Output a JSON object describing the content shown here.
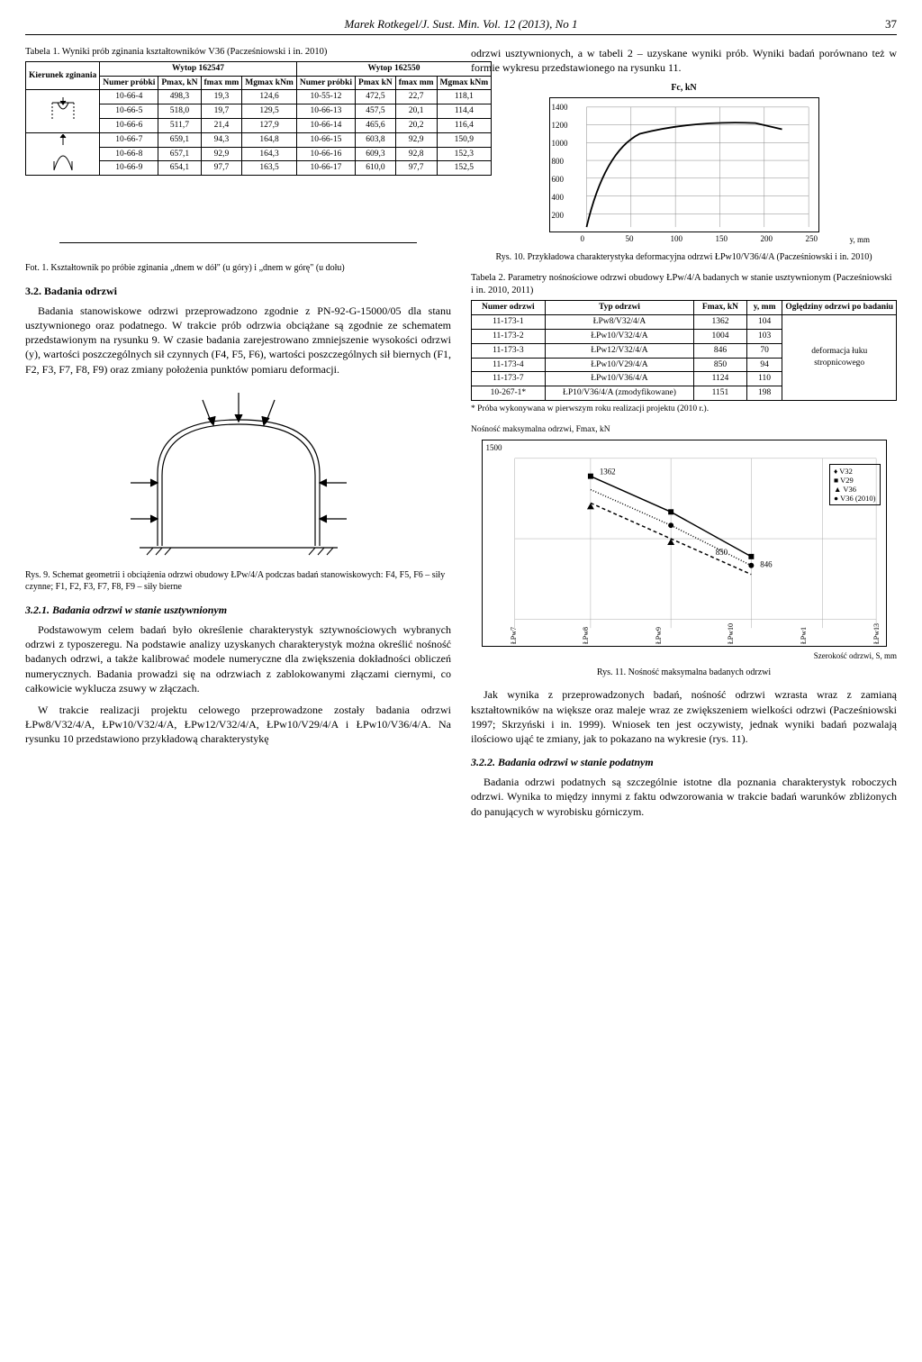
{
  "running_head": "Marek Rotkegel/J. Sust. Min. Vol. 12 (2013), No 1",
  "page_number": "37",
  "table1": {
    "caption": "Tabela 1. Wyniki prób zginania kształtowników V36 (Pacześniowski i in. 2010)",
    "group_left": "Wytop 162547",
    "group_right": "Wytop 162550",
    "head_col0": "Kierunek zginania",
    "heads": [
      "Numer próbki",
      "Pmax, kN",
      "fmax mm",
      "Mgmax kNm",
      "Numer próbki",
      "Pmax kN",
      "fmax mm",
      "Mgmax kNm"
    ],
    "rows": [
      {
        "ico": "down",
        "c": [
          "10-66-4",
          "498,3",
          "19,3",
          "124,6",
          "10-55-12",
          "472,5",
          "22,7",
          "118,1"
        ]
      },
      {
        "ico": "down",
        "c": [
          "10-66-5",
          "518,0",
          "19,7",
          "129,5",
          "10-66-13",
          "457,5",
          "20,1",
          "114,4"
        ]
      },
      {
        "ico": "down",
        "c": [
          "10-66-6",
          "511,7",
          "21,4",
          "127,9",
          "10-66-14",
          "465,6",
          "20,2",
          "116,4"
        ]
      },
      {
        "ico": "up",
        "c": [
          "10-66-7",
          "659,1",
          "94,3",
          "164,8",
          "10-66-15",
          "603,8",
          "92,9",
          "150,9"
        ]
      },
      {
        "ico": "up",
        "c": [
          "10-66-8",
          "657,1",
          "92,9",
          "164,3",
          "10-66-16",
          "609,3",
          "92,8",
          "152,3"
        ]
      },
      {
        "ico": "up",
        "c": [
          "10-66-9",
          "654,1",
          "97,7",
          "163,5",
          "10-66-17",
          "610,0",
          "97,7",
          "152,5"
        ]
      }
    ]
  },
  "right_intro": "odrzwi usztywnionych, a w tabeli 2 – uzyskane wyniki prób. Wyniki badań porównano też w formie wykresu przedstawionego na rysunku 11.",
  "fig10": {
    "ylabel": "Fc, kN",
    "yticks": [
      "1400",
      "1200",
      "1000",
      "800",
      "600",
      "400",
      "200"
    ],
    "xticks": [
      "0",
      "50",
      "100",
      "150",
      "200",
      "250"
    ],
    "xlabel": "y, mm",
    "caption": "Rys. 10. Przykładowa charakterystyka deformacyjna odrzwi ŁPw10/V36/4/A (Pacześniowski i in. 2010)"
  },
  "table2": {
    "caption": "Tabela 2. Parametry nośnościowe odrzwi obudowy ŁPw/4/A badanych w stanie usztywnionym (Pacześniowski i in. 2010, 2011)",
    "heads": [
      "Numer odrzwi",
      "Typ odrzwi",
      "Fmax, kN",
      "y, mm",
      "Oględziny odrzwi po badaniu"
    ],
    "rows": [
      [
        "11-173-1",
        "ŁPw8/V32/4/A",
        "1362",
        "104"
      ],
      [
        "11-173-2",
        "ŁPw10/V32/4/A",
        "1004",
        "103"
      ],
      [
        "11-173-3",
        "ŁPw12/V32/4/A",
        "846",
        "70"
      ],
      [
        "11-173-4",
        "ŁPw10/V29/4/A",
        "850",
        "94"
      ],
      [
        "11-173-7",
        "ŁPw10/V36/4/A",
        "1124",
        "110"
      ],
      [
        "10-267-1*",
        "ŁP10/V36/4/A (zmodyfikowane)",
        "1151",
        "198"
      ]
    ],
    "merged_note": "deformacja łuku stropnicowego",
    "footnote": "* Próba wykonywana w pierwszym roku realizacji projektu (2010 r.)."
  },
  "fot1_caption": "Fot. 1. Kształtownik po próbie zginania „dnem w dół\" (u góry) i „dnem w górę\" (u dołu)",
  "sec32_title": "3.2. Badania odrzwi",
  "sec32_body": "Badania stanowiskowe odrzwi przeprowadzono zgodnie z PN-92-G-15000/05 dla stanu usztywnionego oraz podatnego. W trakcie prób odrzwia obciążane są zgodnie ze schematem przedstawionym na rysunku 9. W czasie badania zarejestrowano zmniejszenie wysokości odrzwi (y), wartości poszczególnych sił czynnych (F4, F5, F6), wartości poszczególnych sił biernych (F1, F2, F3, F7, F8, F9) oraz zmiany położenia punktów pomiaru deformacji.",
  "fig11": {
    "ylabel": "Nośność maksymalna odrzwi, Fmax, kN",
    "ytick_top": "1500",
    "markers": [
      "1362",
      "850",
      "846"
    ],
    "legend": [
      "♦ V32",
      "■ V29",
      "▲ V36",
      "● V36 (2010)"
    ],
    "yaxis_labels": [
      "ŁPw7",
      "ŁPw8",
      "ŁPw9",
      "ŁPw10",
      "ŁPw1",
      "ŁPw13"
    ],
    "xlabel": "Szerokość odrzwi, S, mm",
    "caption": "Rys. 11. Nośność maksymalna badanych odrzwi"
  },
  "fig9_caption": "Rys. 9. Schemat geometrii i obciążenia odrzwi obudowy ŁPw/4/A podczas badań stanowiskowych: F4, F5, F6 – siły czynne; F1, F2, F3, F7, F8, F9 – siły bierne",
  "sec321_title": "3.2.1. Badania odrzwi w stanie usztywnionym",
  "sec321_p1": "Podstawowym celem badań było określenie charakterystyk sztywnościowych wybranych odrzwi z typoszeregu. Na podstawie analizy uzyskanych charakterystyk można określić nośność badanych odrzwi, a także kalibrować modele numeryczne dla zwiększenia dokładności obliczeń numerycznych. Badania prowadzi się na odrzwiach z zablokowanymi złączami ciernymi, co całkowicie wyklucza zsuwy w złączach.",
  "sec321_p2": "W trakcie realizacji projektu celowego przeprowadzone zostały badania odrzwi ŁPw8/V32/4/A, ŁPw10/V32/4/A, ŁPw12/V32/4/A, ŁPw10/V29/4/A i ŁPw10/V36/4/A. Na rysunku 10 przedstawiono przykładową charakterystykę",
  "right_p1": "Jak wynika z przeprowadzonych badań, nośność odrzwi wzrasta wraz z zamianą kształtowników na większe oraz maleje wraz ze zwiększeniem wielkości odrzwi (Pacześniowski 1997; Skrzyński i in. 1999). Wniosek ten jest oczywisty, jednak wyniki badań pozwalają ilościowo ująć te zmiany, jak to pokazano na wykresie (rys. 11).",
  "sec322_title": "3.2.2. Badania odrzwi w stanie podatnym",
  "sec322_body": "Badania odrzwi podatnych są szczególnie istotne dla poznania charakterystyk roboczych odrzwi. Wynika to między innymi z faktu odwzorowania w trakcie badań warunków zbliżonych do panujących w wyrobisku górniczym."
}
